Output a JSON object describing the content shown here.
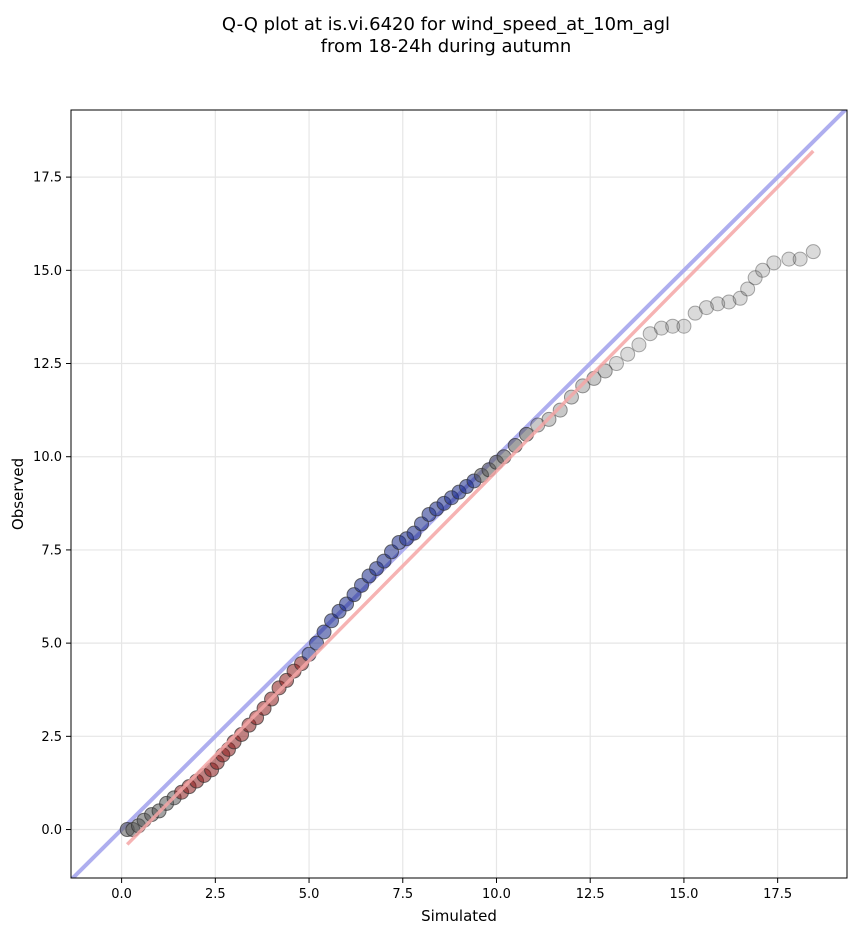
{
  "chart_data": {
    "type": "scatter",
    "title": "Q-Q plot at is.vi.6420 for wind_speed_at_10m_agl",
    "subtitle": "from 18-24h during autumn",
    "xlabel": "Simulated",
    "ylabel": "Observed",
    "xlim": [
      -1.35,
      19.35
    ],
    "ylim": [
      -1.3,
      19.3
    ],
    "xticks": [
      "0.0",
      "2.5",
      "5.0",
      "7.5",
      "10.0",
      "12.5",
      "15.0",
      "17.5"
    ],
    "yticks": [
      "0.0",
      "2.5",
      "5.0",
      "7.5",
      "10.0",
      "12.5",
      "15.0",
      "17.5"
    ],
    "grid": true,
    "reference_lines": [
      {
        "kind": "identity",
        "color": "#aaaaee",
        "from": [
          -1.35,
          -1.35
        ],
        "to": [
          19.35,
          19.35
        ]
      },
      {
        "kind": "fit",
        "color": "#f4a6a6",
        "from": [
          0.15,
          -0.4
        ],
        "to": [
          18.45,
          18.2
        ]
      }
    ],
    "colors": {
      "points": "#555555",
      "point_edge": "#333333",
      "center_tint_blue": "#1a2a8a",
      "center_tint_red": "#8a1a1a"
    },
    "points": {
      "x": [
        0.15,
        0.3,
        0.45,
        0.6,
        0.8,
        1.0,
        1.2,
        1.4,
        1.6,
        1.8,
        2.0,
        2.2,
        2.4,
        2.55,
        2.7,
        2.85,
        3.0,
        3.2,
        3.4,
        3.6,
        3.8,
        4.0,
        4.2,
        4.4,
        4.6,
        4.8,
        5.0,
        5.2,
        5.4,
        5.6,
        5.8,
        6.0,
        6.2,
        6.4,
        6.6,
        6.8,
        7.0,
        7.2,
        7.4,
        7.6,
        7.8,
        8.0,
        8.2,
        8.4,
        8.6,
        8.8,
        9.0,
        9.2,
        9.4,
        9.6,
        9.8,
        10.0,
        10.2,
        10.5,
        10.8,
        11.1,
        11.4,
        11.7,
        12.0,
        12.3,
        12.6,
        12.9,
        13.2,
        13.5,
        13.8,
        14.1,
        14.4,
        14.7,
        15.0,
        15.3,
        15.6,
        15.9,
        16.2,
        16.5,
        16.7,
        16.9,
        17.1,
        17.4,
        17.8,
        18.1,
        18.45
      ],
      "y": [
        0.0,
        0.0,
        0.1,
        0.25,
        0.4,
        0.5,
        0.7,
        0.85,
        1.0,
        1.15,
        1.3,
        1.45,
        1.6,
        1.8,
        2.0,
        2.15,
        2.35,
        2.55,
        2.8,
        3.0,
        3.25,
        3.5,
        3.8,
        4.0,
        4.25,
        4.45,
        4.7,
        5.0,
        5.3,
        5.6,
        5.85,
        6.05,
        6.3,
        6.55,
        6.8,
        7.0,
        7.2,
        7.45,
        7.7,
        7.8,
        7.95,
        8.2,
        8.45,
        8.6,
        8.75,
        8.9,
        9.05,
        9.2,
        9.35,
        9.5,
        9.65,
        9.85,
        10.0,
        10.3,
        10.6,
        10.85,
        11.0,
        11.25,
        11.6,
        11.9,
        12.1,
        12.3,
        12.5,
        12.75,
        13.0,
        13.3,
        13.45,
        13.5,
        13.5,
        13.85,
        14.0,
        14.1,
        14.15,
        14.25,
        14.5,
        14.8,
        15.0,
        15.2,
        15.3,
        15.3,
        15.5
      ]
    }
  }
}
